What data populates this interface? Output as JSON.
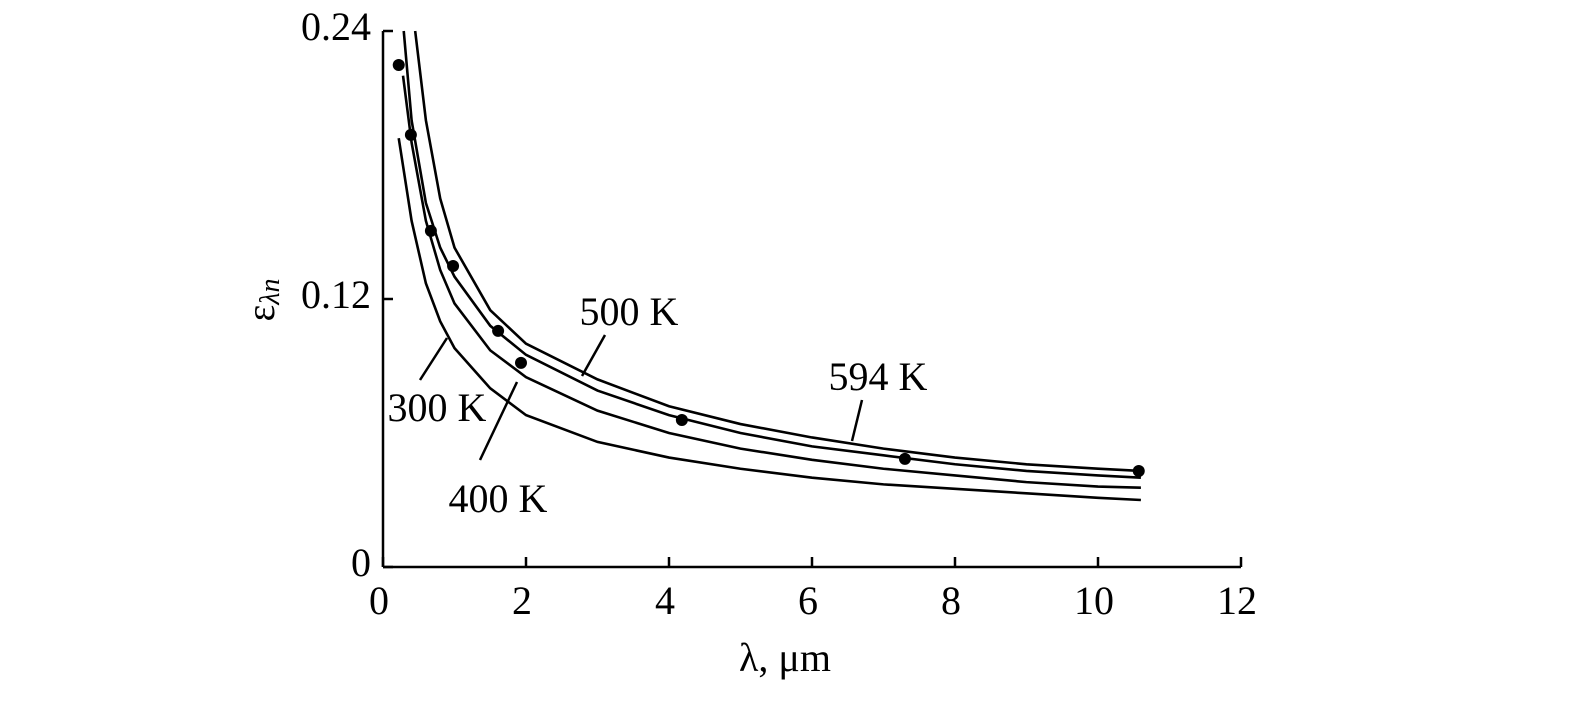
{
  "chart_data": {
    "type": "line",
    "xlabel": "λ, μm",
    "ylabel": {
      "symbol": "ε",
      "subscript": "λn"
    },
    "xlim": [
      0,
      12
    ],
    "ylim": [
      0,
      0.24
    ],
    "xticks": [
      0,
      2,
      4,
      6,
      8,
      10,
      12
    ],
    "yticks": [
      0,
      0.12,
      0.24
    ],
    "series": [
      {
        "name": "300 K",
        "color": "#000000",
        "x": [
          0.22,
          0.4,
          0.6,
          0.8,
          1,
          1.5,
          2,
          3,
          4,
          5,
          6,
          7,
          8,
          9,
          10,
          10.6
        ],
        "values": [
          0.192,
          0.155,
          0.127,
          0.11,
          0.098,
          0.08,
          0.068,
          0.056,
          0.049,
          0.044,
          0.04,
          0.037,
          0.035,
          0.033,
          0.031,
          0.03
        ]
      },
      {
        "name": "400 K",
        "color": "#000000",
        "x": [
          0.28,
          0.4,
          0.6,
          0.8,
          1,
          1.5,
          2,
          3,
          4,
          5,
          6,
          7,
          8,
          9,
          10,
          10.6
        ],
        "values": [
          0.22,
          0.19,
          0.155,
          0.133,
          0.118,
          0.097,
          0.085,
          0.07,
          0.06,
          0.053,
          0.048,
          0.044,
          0.041,
          0.038,
          0.036,
          0.0355
        ]
      },
      {
        "name": "500 K",
        "color": "#000000",
        "x": [
          0.29,
          0.4,
          0.6,
          0.8,
          1,
          1.5,
          2,
          3,
          4,
          5,
          6,
          7,
          8,
          9,
          10,
          10.6
        ],
        "values": [
          0.24,
          0.2,
          0.163,
          0.143,
          0.13,
          0.108,
          0.095,
          0.079,
          0.068,
          0.06,
          0.054,
          0.05,
          0.046,
          0.043,
          0.041,
          0.04
        ]
      },
      {
        "name": "594 K",
        "color": "#000000",
        "x": [
          0.45,
          0.6,
          0.8,
          1,
          1.5,
          2,
          3,
          4,
          5,
          6,
          7,
          8,
          9,
          10,
          10.6
        ],
        "values": [
          0.24,
          0.2,
          0.165,
          0.143,
          0.115,
          0.1,
          0.084,
          0.072,
          0.064,
          0.058,
          0.053,
          0.049,
          0.046,
          0.044,
          0.043
        ]
      },
      {
        "type": "scatter",
        "color": "#000000",
        "x": [
          0.22,
          0.39,
          0.67,
          0.98,
          1.61,
          1.93,
          4.18,
          7.3,
          10.57
        ],
        "values": [
          0.2248,
          0.1935,
          0.1505,
          0.1348,
          0.1057,
          0.0914,
          0.0658,
          0.0484,
          0.043
        ]
      }
    ]
  }
}
